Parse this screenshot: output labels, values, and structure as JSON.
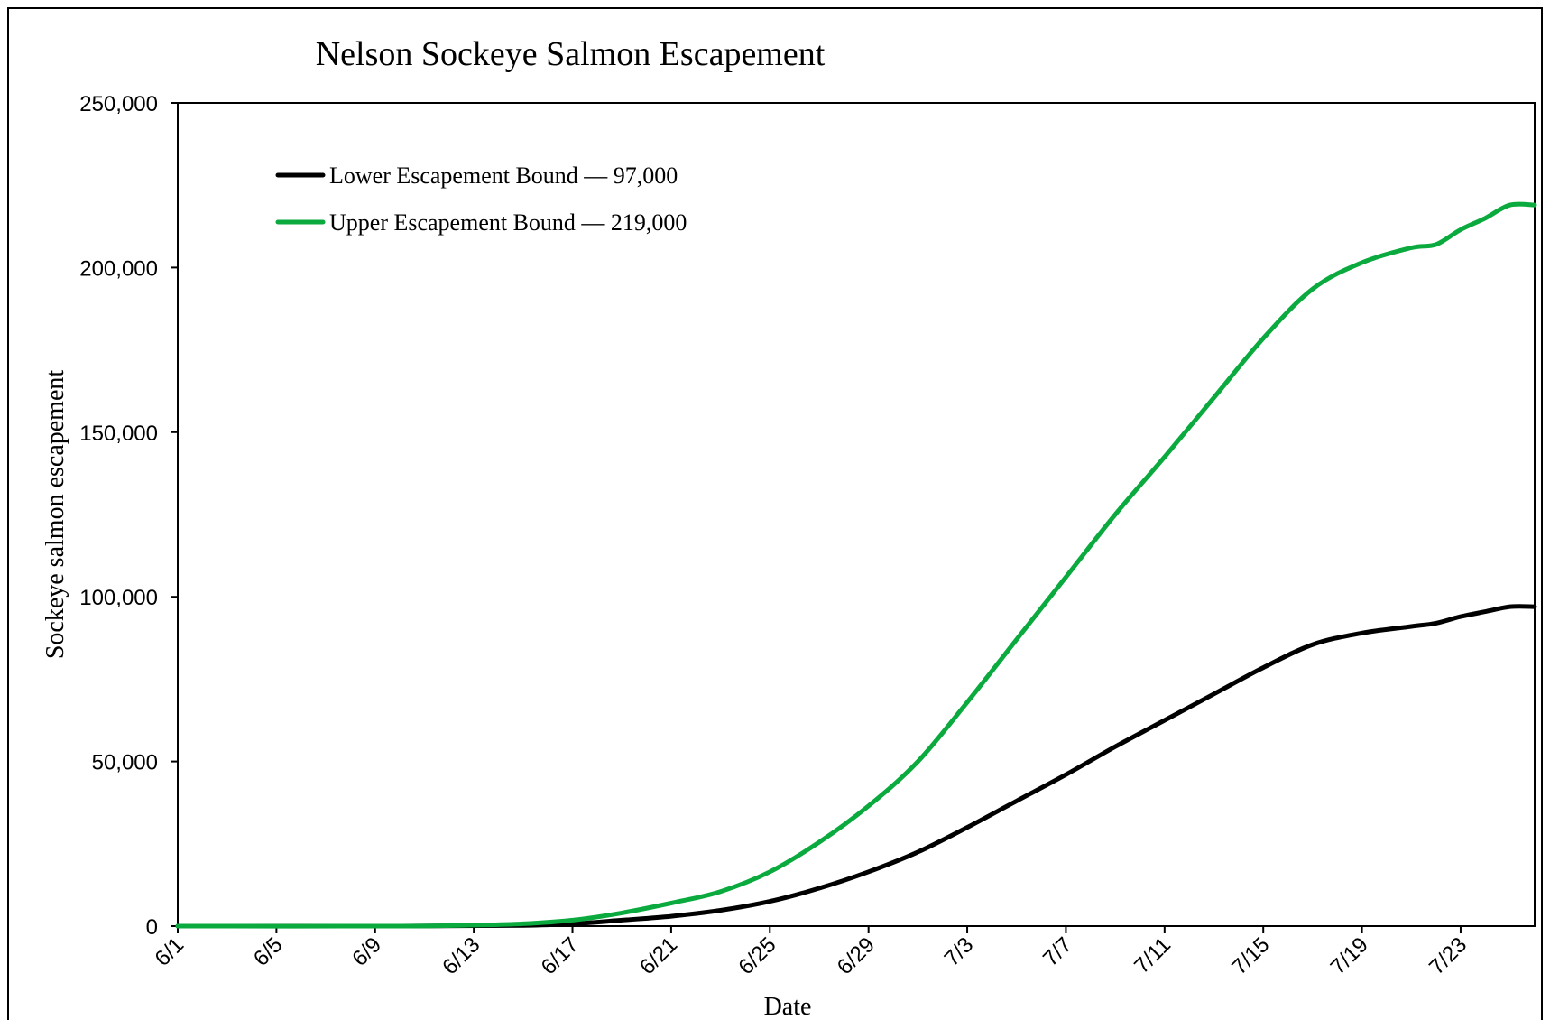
{
  "chart_data": {
    "type": "line",
    "title": "Nelson Sockeye Salmon Escapement",
    "xlabel": "Date",
    "ylabel": "Sockeye salmon escapement",
    "x_ticks": [
      "6/1",
      "6/5",
      "6/9",
      "6/13",
      "6/17",
      "6/21",
      "6/25",
      "6/29",
      "7/3",
      "7/7",
      "7/11",
      "7/15",
      "7/19",
      "7/23"
    ],
    "y_ticks": [
      "0",
      "50,000",
      "100,000",
      "150,000",
      "200,000",
      "250,000"
    ],
    "ylim": [
      0,
      250000
    ],
    "xlim": [
      "6/1",
      "7/26"
    ],
    "grid": false,
    "legend_position": "top-left",
    "series": [
      {
        "name": "Lower Escapement Bound — 97,000",
        "color": "#000000",
        "points": [
          {
            "x": "6/1",
            "y": 0
          },
          {
            "x": "6/10",
            "y": 0
          },
          {
            "x": "6/15",
            "y": 200
          },
          {
            "x": "6/17",
            "y": 700
          },
          {
            "x": "6/19",
            "y": 1800
          },
          {
            "x": "6/21",
            "y": 3000
          },
          {
            "x": "6/23",
            "y": 4800
          },
          {
            "x": "6/25",
            "y": 7500
          },
          {
            "x": "6/27",
            "y": 11500
          },
          {
            "x": "6/29",
            "y": 16500
          },
          {
            "x": "7/1",
            "y": 22500
          },
          {
            "x": "7/3",
            "y": 30000
          },
          {
            "x": "7/5",
            "y": 38000
          },
          {
            "x": "7/7",
            "y": 46000
          },
          {
            "x": "7/9",
            "y": 54500
          },
          {
            "x": "7/11",
            "y": 62500
          },
          {
            "x": "7/13",
            "y": 70500
          },
          {
            "x": "7/15",
            "y": 78500
          },
          {
            "x": "7/17",
            "y": 85500
          },
          {
            "x": "7/19",
            "y": 89000
          },
          {
            "x": "7/21",
            "y": 91000
          },
          {
            "x": "7/22",
            "y": 92000
          },
          {
            "x": "7/23",
            "y": 94000
          },
          {
            "x": "7/24",
            "y": 95500
          },
          {
            "x": "7/25",
            "y": 97000
          },
          {
            "x": "7/26",
            "y": 97000
          }
        ]
      },
      {
        "name": "Upper Escapement Bound — 219,000",
        "color": "#0AAA3E",
        "points": [
          {
            "x": "6/1",
            "y": 0
          },
          {
            "x": "6/10",
            "y": 0
          },
          {
            "x": "6/13",
            "y": 300
          },
          {
            "x": "6/15",
            "y": 700
          },
          {
            "x": "6/17",
            "y": 1800
          },
          {
            "x": "6/19",
            "y": 4000
          },
          {
            "x": "6/21",
            "y": 7000
          },
          {
            "x": "6/23",
            "y": 10500
          },
          {
            "x": "6/25",
            "y": 16500
          },
          {
            "x": "6/27",
            "y": 25500
          },
          {
            "x": "6/29",
            "y": 36500
          },
          {
            "x": "7/1",
            "y": 50000
          },
          {
            "x": "7/3",
            "y": 68000
          },
          {
            "x": "7/5",
            "y": 87000
          },
          {
            "x": "7/7",
            "y": 106000
          },
          {
            "x": "7/9",
            "y": 125000
          },
          {
            "x": "7/11",
            "y": 142500
          },
          {
            "x": "7/13",
            "y": 160500
          },
          {
            "x": "7/15",
            "y": 178500
          },
          {
            "x": "7/17",
            "y": 193500
          },
          {
            "x": "7/19",
            "y": 201500
          },
          {
            "x": "7/21",
            "y": 206000
          },
          {
            "x": "7/22",
            "y": 207000
          },
          {
            "x": "7/23",
            "y": 211500
          },
          {
            "x": "7/24",
            "y": 215000
          },
          {
            "x": "7/25",
            "y": 219000
          },
          {
            "x": "7/26",
            "y": 219000
          }
        ]
      }
    ]
  }
}
